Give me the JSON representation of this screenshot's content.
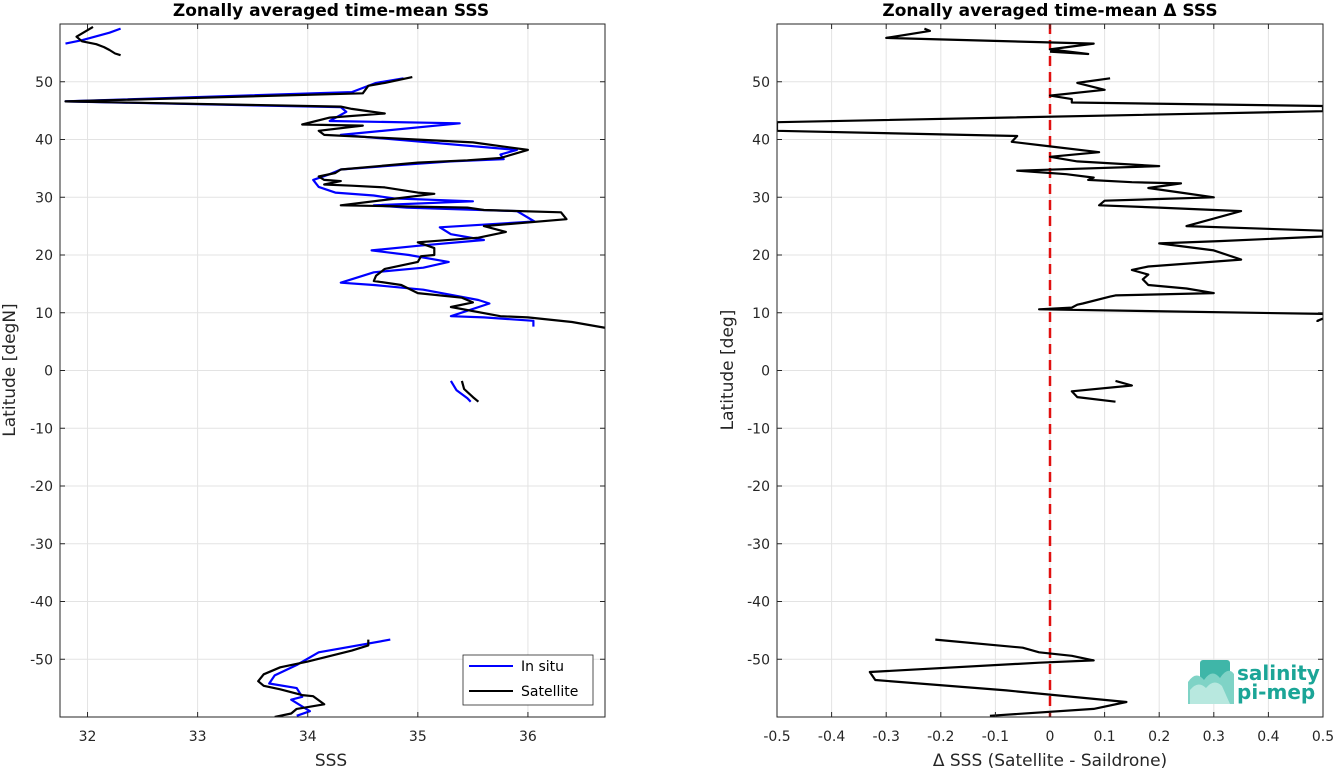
{
  "chart_data": [
    {
      "type": "line",
      "title": "Zonally averaged time-mean SSS",
      "xlabel": "SSS",
      "ylabel": "Latitude [degN]",
      "xlim": [
        31.75,
        36.7
      ],
      "ylim": [
        -60,
        60
      ],
      "xticks": [
        32,
        33,
        34,
        35,
        36
      ],
      "yticks": [
        -50,
        -40,
        -30,
        -20,
        -10,
        0,
        10,
        20,
        30,
        40,
        50
      ],
      "grid": true,
      "legend": "bottom-right",
      "series": [
        {
          "name": "In situ",
          "color": "#0000ff",
          "segments": [
            [
              [
                32.3,
                59.2
              ],
              [
                32.2,
                58.5
              ],
              [
                31.95,
                57.2
              ],
              [
                31.8,
                56.6
              ]
            ],
            [
              [
                34.87,
                50.6
              ],
              [
                34.62,
                49.8
              ],
              [
                34.4,
                48.2
              ],
              [
                31.8,
                46.6
              ],
              [
                34.3,
                45.6
              ],
              [
                34.35,
                44.8
              ],
              [
                34.2,
                43.2
              ],
              [
                35.38,
                42.8
              ],
              [
                34.3,
                40.8
              ],
              [
                35.9,
                38.2
              ],
              [
                35.75,
                37.4
              ],
              [
                35.78,
                36.6
              ],
              [
                35.3,
                36.2
              ],
              [
                34.85,
                35.6
              ],
              [
                34.3,
                34.8
              ],
              [
                34.2,
                34.0
              ],
              [
                34.05,
                33.0
              ],
              [
                34.1,
                31.8
              ],
              [
                34.25,
                30.8
              ],
              [
                34.6,
                30.3
              ],
              [
                34.78,
                29.8
              ],
              [
                35.5,
                29.3
              ],
              [
                34.6,
                28.6
              ],
              [
                34.9,
                28.2
              ],
              [
                35.9,
                27.6
              ],
              [
                36.06,
                25.8
              ],
              [
                35.2,
                24.8
              ],
              [
                35.3,
                23.6
              ],
              [
                35.6,
                22.6
              ],
              [
                35.0,
                21.6
              ],
              [
                34.58,
                20.8
              ],
              [
                34.92,
                20.0
              ],
              [
                35.28,
                18.8
              ],
              [
                35.05,
                17.8
              ],
              [
                34.6,
                17.0
              ],
              [
                34.3,
                15.2
              ],
              [
                34.6,
                14.8
              ],
              [
                35.05,
                14.0
              ],
              [
                35.55,
                12.2
              ],
              [
                35.65,
                11.6
              ],
              [
                35.3,
                9.4
              ],
              [
                35.6,
                9.2
              ],
              [
                36.05,
                8.6
              ],
              [
                36.05,
                7.6
              ]
            ],
            [
              [
                35.3,
                -1.8
              ],
              [
                35.35,
                -3.4
              ],
              [
                35.45,
                -4.8
              ],
              [
                35.48,
                -5.4
              ]
            ],
            [
              [
                34.75,
                -46.6
              ],
              [
                34.1,
                -48.8
              ],
              [
                33.9,
                -51.0
              ],
              [
                33.7,
                -52.8
              ],
              [
                33.65,
                -54.2
              ],
              [
                33.9,
                -55.0
              ],
              [
                33.95,
                -56.5
              ],
              [
                33.85,
                -57.0
              ],
              [
                34.02,
                -59.0
              ],
              [
                33.9,
                -59.8
              ]
            ]
          ]
        },
        {
          "name": "Satellite",
          "color": "#000000",
          "segments": [
            [
              [
                32.05,
                59.5
              ],
              [
                31.9,
                57.8
              ],
              [
                31.95,
                57.0
              ],
              [
                32.08,
                56.5
              ],
              [
                32.15,
                56.0
              ],
              [
                32.2,
                55.5
              ],
              [
                32.25,
                54.9
              ],
              [
                32.3,
                54.6
              ]
            ],
            [
              [
                34.95,
                50.8
              ],
              [
                34.7,
                49.8
              ],
              [
                34.55,
                49.3
              ],
              [
                34.5,
                48.0
              ],
              [
                31.8,
                46.6
              ],
              [
                34.3,
                45.7
              ],
              [
                34.4,
                45.3
              ],
              [
                34.7,
                44.5
              ],
              [
                34.2,
                43.8
              ],
              [
                33.95,
                42.6
              ],
              [
                34.5,
                42.4
              ],
              [
                34.1,
                41.5
              ],
              [
                34.15,
                40.8
              ],
              [
                35.5,
                39.5
              ],
              [
                36.0,
                38.2
              ],
              [
                35.75,
                36.8
              ],
              [
                35.45,
                36.4
              ],
              [
                35.0,
                36.0
              ],
              [
                34.3,
                34.8
              ],
              [
                34.25,
                34.2
              ],
              [
                34.1,
                33.6
              ],
              [
                34.15,
                33.0
              ],
              [
                34.3,
                32.8
              ],
              [
                34.15,
                32.2
              ],
              [
                34.4,
                32.0
              ],
              [
                34.7,
                31.7
              ],
              [
                35.0,
                30.8
              ],
              [
                35.15,
                30.6
              ],
              [
                34.3,
                28.6
              ],
              [
                35.45,
                28.2
              ],
              [
                35.6,
                27.8
              ],
              [
                36.3,
                27.4
              ],
              [
                36.35,
                26.2
              ],
              [
                35.6,
                25.0
              ],
              [
                35.8,
                24.0
              ],
              [
                35.55,
                23.0
              ],
              [
                35.0,
                22.2
              ],
              [
                35.15,
                21.2
              ],
              [
                35.15,
                20.0
              ],
              [
                35.03,
                19.8
              ],
              [
                35.0,
                18.8
              ],
              [
                34.7,
                17.6
              ],
              [
                34.62,
                16.4
              ],
              [
                34.6,
                15.5
              ],
              [
                34.85,
                14.8
              ],
              [
                35.0,
                13.4
              ],
              [
                35.4,
                12.6
              ],
              [
                35.5,
                11.8
              ],
              [
                35.3,
                11.0
              ],
              [
                35.75,
                9.4
              ],
              [
                36.0,
                9.2
              ],
              [
                36.4,
                8.4
              ],
              [
                36.7,
                7.4
              ]
            ],
            [
              [
                35.4,
                -1.8
              ],
              [
                35.42,
                -3.2
              ],
              [
                35.5,
                -4.6
              ],
              [
                35.55,
                -5.4
              ]
            ],
            [
              [
                34.55,
                -46.6
              ],
              [
                34.55,
                -47.6
              ],
              [
                34.4,
                -48.5
              ],
              [
                34.0,
                -50.4
              ],
              [
                33.75,
                -51.4
              ],
              [
                33.6,
                -52.6
              ],
              [
                33.55,
                -53.8
              ],
              [
                33.6,
                -54.6
              ],
              [
                33.75,
                -55.2
              ],
              [
                33.95,
                -56.2
              ],
              [
                34.05,
                -56.4
              ],
              [
                34.15,
                -57.8
              ],
              [
                33.9,
                -58.6
              ],
              [
                33.85,
                -59.4
              ],
              [
                33.7,
                -60.0
              ]
            ]
          ]
        }
      ]
    },
    {
      "type": "line",
      "title": "Zonally averaged time-mean Δ SSS",
      "xlabel": "Δ SSS (Satellite - Saildrone)",
      "ylabel": "Latitude [deg]",
      "xlim": [
        -0.5,
        0.5
      ],
      "ylim": [
        -60,
        60
      ],
      "xticks": [
        -0.5,
        -0.4,
        -0.3,
        -0.2,
        -0.1,
        0,
        0.1,
        0.2,
        0.3,
        0.4,
        0.5
      ],
      "xtick_labels": [
        "-0.5",
        "-0.4",
        "-0.3",
        "-0.2",
        "-0.1",
        "0",
        "0.1",
        "0.2",
        "0.3",
        "0.4",
        "0.5"
      ],
      "yticks": [
        -50,
        -40,
        -30,
        -20,
        -10,
        0,
        10,
        20,
        30,
        40,
        50
      ],
      "grid": true,
      "reference_line": {
        "x": 0,
        "color": "#e01010",
        "style": "dashed"
      },
      "series": [
        {
          "name": "",
          "color": "#000000",
          "segments": [
            [
              [
                -0.23,
                59.2
              ],
              [
                -0.22,
                58.8
              ],
              [
                -0.3,
                57.6
              ],
              [
                0.08,
                56.6
              ],
              [
                0.0,
                55.6
              ],
              [
                0.07,
                54.8
              ],
              [
                0.0,
                55.2
              ]
            ],
            [
              [
                0.11,
                50.6
              ],
              [
                0.05,
                49.8
              ],
              [
                0.1,
                48.6
              ],
              [
                0.0,
                47.6
              ],
              [
                0.04,
                47.0
              ],
              [
                0.04,
                46.4
              ],
              [
                0.5,
                45.8
              ],
              [
                0.5,
                44.9
              ],
              [
                -0.5,
                43.0
              ],
              [
                -0.5,
                41.9
              ],
              [
                -0.5,
                41.5
              ],
              [
                -0.06,
                40.6
              ],
              [
                -0.07,
                39.6
              ],
              [
                0.0,
                38.8
              ],
              [
                0.09,
                37.8
              ],
              [
                0.0,
                37.0
              ],
              [
                0.05,
                36.2
              ],
              [
                0.2,
                35.4
              ],
              [
                -0.06,
                34.6
              ],
              [
                0.0,
                34.2
              ],
              [
                0.03,
                34.0
              ],
              [
                0.08,
                33.4
              ],
              [
                0.07,
                33.0
              ],
              [
                0.15,
                32.6
              ],
              [
                0.24,
                32.4
              ],
              [
                0.18,
                31.6
              ],
              [
                0.24,
                30.8
              ],
              [
                0.3,
                30.0
              ],
              [
                0.1,
                29.4
              ],
              [
                0.09,
                28.6
              ],
              [
                0.2,
                28.2
              ],
              [
                0.35,
                27.6
              ],
              [
                0.25,
                25.0
              ],
              [
                0.5,
                24.2
              ],
              [
                0.5,
                23.2
              ],
              [
                0.31,
                22.4
              ],
              [
                0.2,
                22.0
              ],
              [
                0.3,
                20.8
              ],
              [
                0.35,
                19.2
              ],
              [
                0.18,
                18.0
              ],
              [
                0.15,
                17.4
              ],
              [
                0.18,
                16.6
              ],
              [
                0.17,
                15.8
              ],
              [
                0.18,
                14.8
              ],
              [
                0.25,
                14.2
              ],
              [
                0.3,
                13.4
              ],
              [
                0.12,
                13.0
              ],
              [
                0.11,
                12.8
              ],
              [
                0.06,
                11.6
              ],
              [
                0.05,
                11.4
              ],
              [
                0.04,
                10.9
              ],
              [
                -0.02,
                10.6
              ],
              [
                0.5,
                9.8
              ],
              [
                0.5,
                9.6
              ]
            ],
            [
              [
                0.5,
                9.0
              ],
              [
                0.49,
                8.6
              ],
              [
                0.49,
                8.4
              ]
            ],
            [
              [
                0.12,
                -1.8
              ],
              [
                0.15,
                -2.6
              ],
              [
                0.04,
                -3.6
              ],
              [
                0.05,
                -4.6
              ],
              [
                0.12,
                -5.4
              ]
            ],
            [
              [
                -0.21,
                -46.6
              ],
              [
                -0.05,
                -48.0
              ],
              [
                -0.02,
                -48.8
              ],
              [
                0.04,
                -49.4
              ],
              [
                0.08,
                -50.2
              ],
              [
                -0.02,
                -50.6
              ],
              [
                -0.33,
                -52.2
              ],
              [
                -0.32,
                -53.6
              ],
              [
                -0.08,
                -55.4
              ],
              [
                0.14,
                -57.4
              ],
              [
                0.08,
                -58.6
              ],
              [
                -0.11,
                -59.8
              ]
            ]
          ]
        }
      ]
    }
  ],
  "legend": {
    "insitu_label": "In situ",
    "satellite_label": "Satellite"
  },
  "logo": {
    "line1": "salinity",
    "line2": "pi-mep"
  }
}
